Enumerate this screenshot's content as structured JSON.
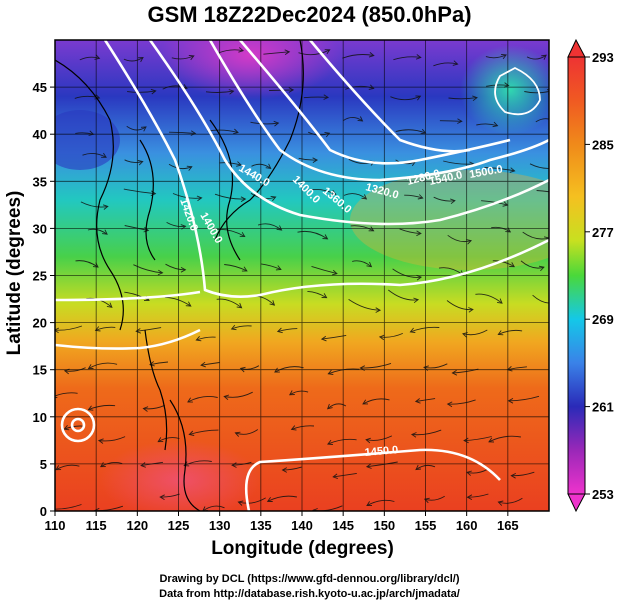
{
  "title": "GSM 18Z22Dec2024 (850.0hPa)",
  "axes": {
    "xlabel": "Longitude (degrees)",
    "ylabel": "Latitude  (degrees)",
    "x_ticks": [
      "110",
      "115",
      "120",
      "125",
      "130",
      "135",
      "140",
      "145",
      "150",
      "155",
      "160",
      "165"
    ],
    "y_ticks": [
      "0",
      "5",
      "10",
      "15",
      "20",
      "25",
      "30",
      "35",
      "40",
      "45"
    ],
    "xlim": [
      110,
      170
    ],
    "ylim": [
      0,
      50
    ]
  },
  "colorbar": {
    "ticks": [
      "293",
      "285",
      "277",
      "269",
      "261",
      "253"
    ],
    "colors": [
      "#ee3333",
      "#f08a1a",
      "#f5c020",
      "#d8e020",
      "#5cd83a",
      "#2ad0a8",
      "#14c8e8",
      "#3a82e8",
      "#2a2ab8",
      "#9a28b8",
      "#ee33cc"
    ]
  },
  "contour_labels": [
    "1440.0",
    "1400.0",
    "1360.0",
    "1320.0",
    "1280.0",
    "1400.0",
    "1420.0",
    "1500.0",
    "1540.0",
    "1450.0"
  ],
  "credits": {
    "line1": "Drawing by DCL (https://www.gfd-dennou.org/library/dcl/)",
    "line2": "Data from http://database.rish.kyoto-u.ac.jp/arch/jmadata/"
  },
  "chart_data": {
    "type": "heatmap",
    "title": "GSM 18Z22Dec2024 (850.0hPa)",
    "xlabel": "Longitude (degrees)",
    "ylabel": "Latitude  (degrees)",
    "xlim": [
      110,
      170
    ],
    "ylim": [
      0,
      50
    ],
    "colorbar_range": [
      253,
      293
    ],
    "colorbar_ticks": [
      293,
      285,
      277,
      269,
      261,
      253
    ],
    "grid": true,
    "features": [
      "temperature shading",
      "geopotential height contours (white)",
      "wind streamlines (black)",
      "coastlines"
    ]
  }
}
